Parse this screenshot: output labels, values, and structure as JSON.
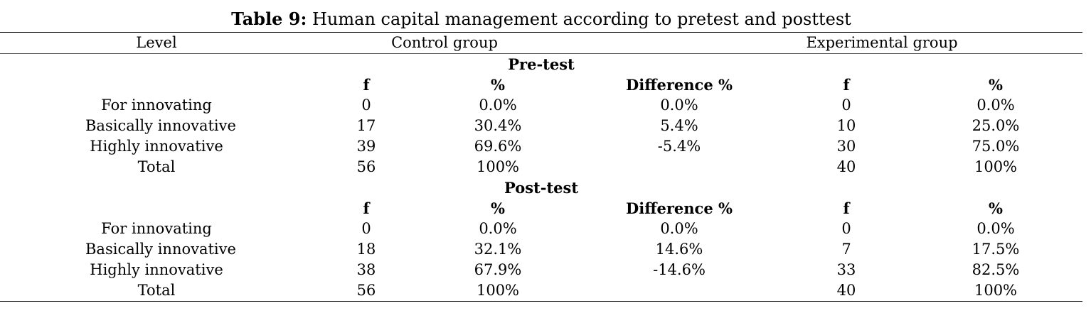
{
  "title": {
    "label": "Table 9:",
    "text": " Human capital management according to pretest and posttest"
  },
  "header": {
    "level": "Level",
    "control": "Control group",
    "experimental": "Experimental group"
  },
  "sections": [
    {
      "name": "Pre-test",
      "columns": [
        "f",
        "%",
        "Difference %",
        "f",
        "%"
      ],
      "rows": [
        {
          "level": "For innovating",
          "cf": "0",
          "cp": "0.0%",
          "diff": "0.0%",
          "ef": "0",
          "ep": "0.0%"
        },
        {
          "level": "Basically innovative",
          "cf": "17",
          "cp": "30.4%",
          "diff": "5.4%",
          "ef": "10",
          "ep": "25.0%"
        },
        {
          "level": "Highly innovative",
          "cf": "39",
          "cp": "69.6%",
          "diff": "-5.4%",
          "ef": "30",
          "ep": "75.0%"
        },
        {
          "level": "Total",
          "cf": "56",
          "cp": "100%",
          "diff": "",
          "ef": "40",
          "ep": "100%"
        }
      ]
    },
    {
      "name": "Post-test",
      "columns": [
        "f",
        "%",
        "Difference %",
        "f",
        "%"
      ],
      "rows": [
        {
          "level": "For innovating",
          "cf": "0",
          "cp": "0.0%",
          "diff": "0.0%",
          "ef": "0",
          "ep": "0.0%"
        },
        {
          "level": "Basically innovative",
          "cf": "18",
          "cp": "32.1%",
          "diff": "14.6%",
          "ef": "7",
          "ep": "17.5%"
        },
        {
          "level": "Highly innovative",
          "cf": "38",
          "cp": "67.9%",
          "diff": "-14.6%",
          "ef": "33",
          "ep": "82.5%"
        },
        {
          "level": "Total",
          "cf": "56",
          "cp": "100%",
          "diff": "",
          "ef": "40",
          "ep": "100%"
        }
      ]
    }
  ]
}
